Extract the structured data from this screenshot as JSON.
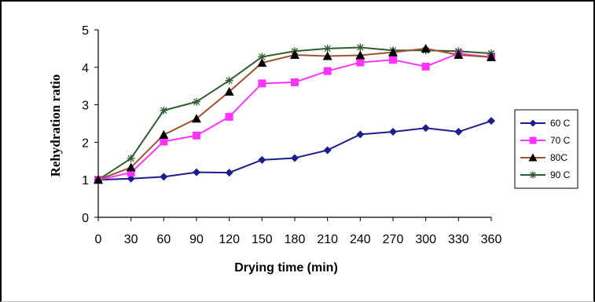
{
  "chart_data": {
    "type": "line",
    "title": "",
    "xlabel": "Drying time (min)",
    "ylabel": "Rehydration ratio",
    "x": [
      0,
      30,
      60,
      90,
      120,
      150,
      180,
      210,
      240,
      270,
      300,
      330,
      360
    ],
    "xlim": [
      0,
      360
    ],
    "ylim": [
      0,
      5
    ],
    "yticks": [
      0,
      1,
      2,
      3,
      4,
      5
    ],
    "grid": false,
    "legend_position": "right",
    "series": [
      {
        "name": "60 C",
        "color": "#1c1c8c",
        "marker": "diamond",
        "values": [
          1.0,
          1.03,
          1.08,
          1.2,
          1.19,
          1.53,
          1.58,
          1.79,
          2.21,
          2.28,
          2.38,
          2.28,
          2.57
        ]
      },
      {
        "name": "70 C",
        "color": "#ff33ff",
        "marker": "square",
        "values": [
          1.0,
          1.19,
          2.02,
          2.18,
          2.68,
          3.57,
          3.6,
          3.9,
          4.13,
          4.2,
          4.02,
          4.37,
          4.27
        ]
      },
      {
        "name": "80C",
        "color": "#a0522d",
        "marker": "triangle",
        "values": [
          1.0,
          1.33,
          2.2,
          2.63,
          3.35,
          4.12,
          4.33,
          4.3,
          4.32,
          4.4,
          4.5,
          4.33,
          4.27
        ]
      },
      {
        "name": "90 C",
        "color": "#2e5e2e",
        "marker": "star",
        "values": [
          1.0,
          1.57,
          2.85,
          3.08,
          3.65,
          4.28,
          4.43,
          4.5,
          4.53,
          4.45,
          4.45,
          4.43,
          4.37
        ]
      }
    ]
  }
}
